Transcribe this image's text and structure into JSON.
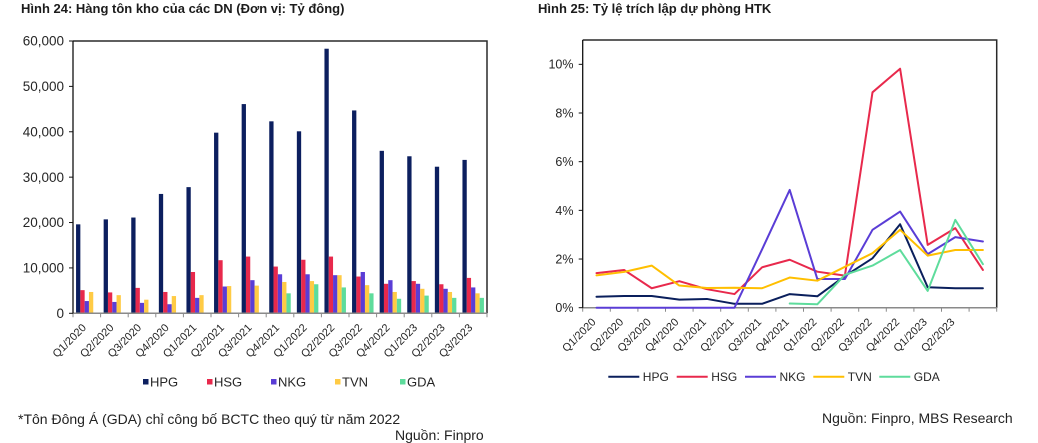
{
  "figures": {
    "left": {
      "footnote": "*Tôn Đông Á (GDA) chỉ công bố BCTC theo quý từ năm 2022",
      "source": "Nguồn: Finpro"
    },
    "right": {
      "source": "Nguồn: Finpro, MBS Research"
    }
  },
  "chart_data": [
    {
      "type": "bar",
      "title": "Hình 24: Hàng tôn kho của các DN (Đơn vị: Tỷ đông)",
      "xlabel": "",
      "ylabel": "",
      "categories": [
        "Q1/2020",
        "Q2/2020",
        "Q3/2020",
        "Q4/2020",
        "Q1/2021",
        "Q2/2021",
        "Q3/2021",
        "Q4/2021",
        "Q1/2022",
        "Q2/2022",
        "Q3/2022",
        "Q4/2022",
        "Q1/2023",
        "Q2/2023",
        "Q3/2023"
      ],
      "series": [
        {
          "name": "HPG",
          "color": "#0c1f5f",
          "values": [
            19600,
            20700,
            21100,
            26300,
            27800,
            39800,
            46100,
            42300,
            40100,
            58300,
            44700,
            35800,
            34600,
            32300,
            33800
          ]
        },
        {
          "name": "HSG",
          "color": "#e8294c",
          "values": [
            5100,
            4600,
            5600,
            4700,
            9100,
            11700,
            12500,
            10300,
            11800,
            12500,
            8100,
            6500,
            7100,
            6400,
            7800
          ]
        },
        {
          "name": "NKG",
          "color": "#5a3dd6",
          "values": [
            2700,
            2500,
            2300,
            2000,
            3400,
            5900,
            7300,
            8600,
            8600,
            8400,
            9100,
            7300,
            6500,
            5400,
            5700
          ]
        },
        {
          "name": "TVN",
          "color": "#ffcb45",
          "values": [
            4700,
            4000,
            3000,
            3800,
            4000,
            6000,
            6100,
            6900,
            7100,
            8400,
            6200,
            4700,
            5400,
            4700,
            4400
          ]
        },
        {
          "name": "GDA",
          "color": "#5edc9c",
          "values": [
            null,
            null,
            null,
            null,
            null,
            null,
            null,
            4400,
            6400,
            5700,
            4400,
            3200,
            3900,
            3400,
            3400
          ]
        }
      ],
      "ylim": [
        0,
        60000
      ],
      "yticks": [
        0,
        10000,
        20000,
        30000,
        40000,
        50000,
        60000
      ],
      "ytick_labels": [
        "0",
        "10,000",
        "20,000",
        "30,000",
        "40,000",
        "50,000",
        "60,000"
      ],
      "grid": false,
      "legend": "bottom"
    },
    {
      "type": "line",
      "title": "Hình 25: Tỷ lệ trích lập dự phòng HTK",
      "xlabel": "",
      "ylabel": "",
      "categories": [
        "Q1/2020",
        "Q2/2020",
        "Q3/2020",
        "Q4/2020",
        "Q1/2021",
        "Q2/2021",
        "Q3/2021",
        "Q4/2021",
        "Q1/2022",
        "Q2/2022",
        "Q3/2022",
        "Q4/2022",
        "Q1/2023",
        "Q2/2023",
        ""
      ],
      "series": [
        {
          "name": "HPG",
          "color": "#0a1f5c",
          "values": [
            0.45,
            0.48,
            0.48,
            0.33,
            0.36,
            0.16,
            0.16,
            0.56,
            0.47,
            1.3,
            2.03,
            3.43,
            0.84,
            0.8,
            0.8
          ]
        },
        {
          "name": "HSG",
          "color": "#e8294c",
          "values": [
            1.42,
            1.55,
            0.8,
            1.09,
            0.76,
            0.56,
            1.66,
            1.97,
            1.48,
            1.32,
            8.85,
            9.82,
            2.58,
            3.27,
            1.55
          ]
        },
        {
          "name": "NKG",
          "color": "#5a3dd6",
          "values": [
            0,
            0,
            0,
            0,
            0,
            0,
            2.4,
            4.84,
            1.18,
            1.18,
            3.2,
            3.95,
            2.2,
            2.9,
            2.72
          ]
        },
        {
          "name": "TVN",
          "color": "#ffbf00",
          "values": [
            1.33,
            1.47,
            1.73,
            0.91,
            0.81,
            0.82,
            0.8,
            1.24,
            1.11,
            1.68,
            2.24,
            3.2,
            2.14,
            2.37,
            2.37
          ]
        },
        {
          "name": "GDA",
          "color": "#5edc9c",
          "values": [
            null,
            null,
            null,
            null,
            null,
            null,
            null,
            0.17,
            0.14,
            1.35,
            1.73,
            2.37,
            0.69,
            3.61,
            1.79
          ]
        }
      ],
      "ylim": [
        0,
        11
      ],
      "yticks": [
        0,
        2,
        4,
        6,
        8,
        10
      ],
      "ytick_labels": [
        "0%",
        "2%",
        "4%",
        "6%",
        "8%",
        "10%"
      ],
      "grid": false,
      "legend": "bottom"
    }
  ]
}
